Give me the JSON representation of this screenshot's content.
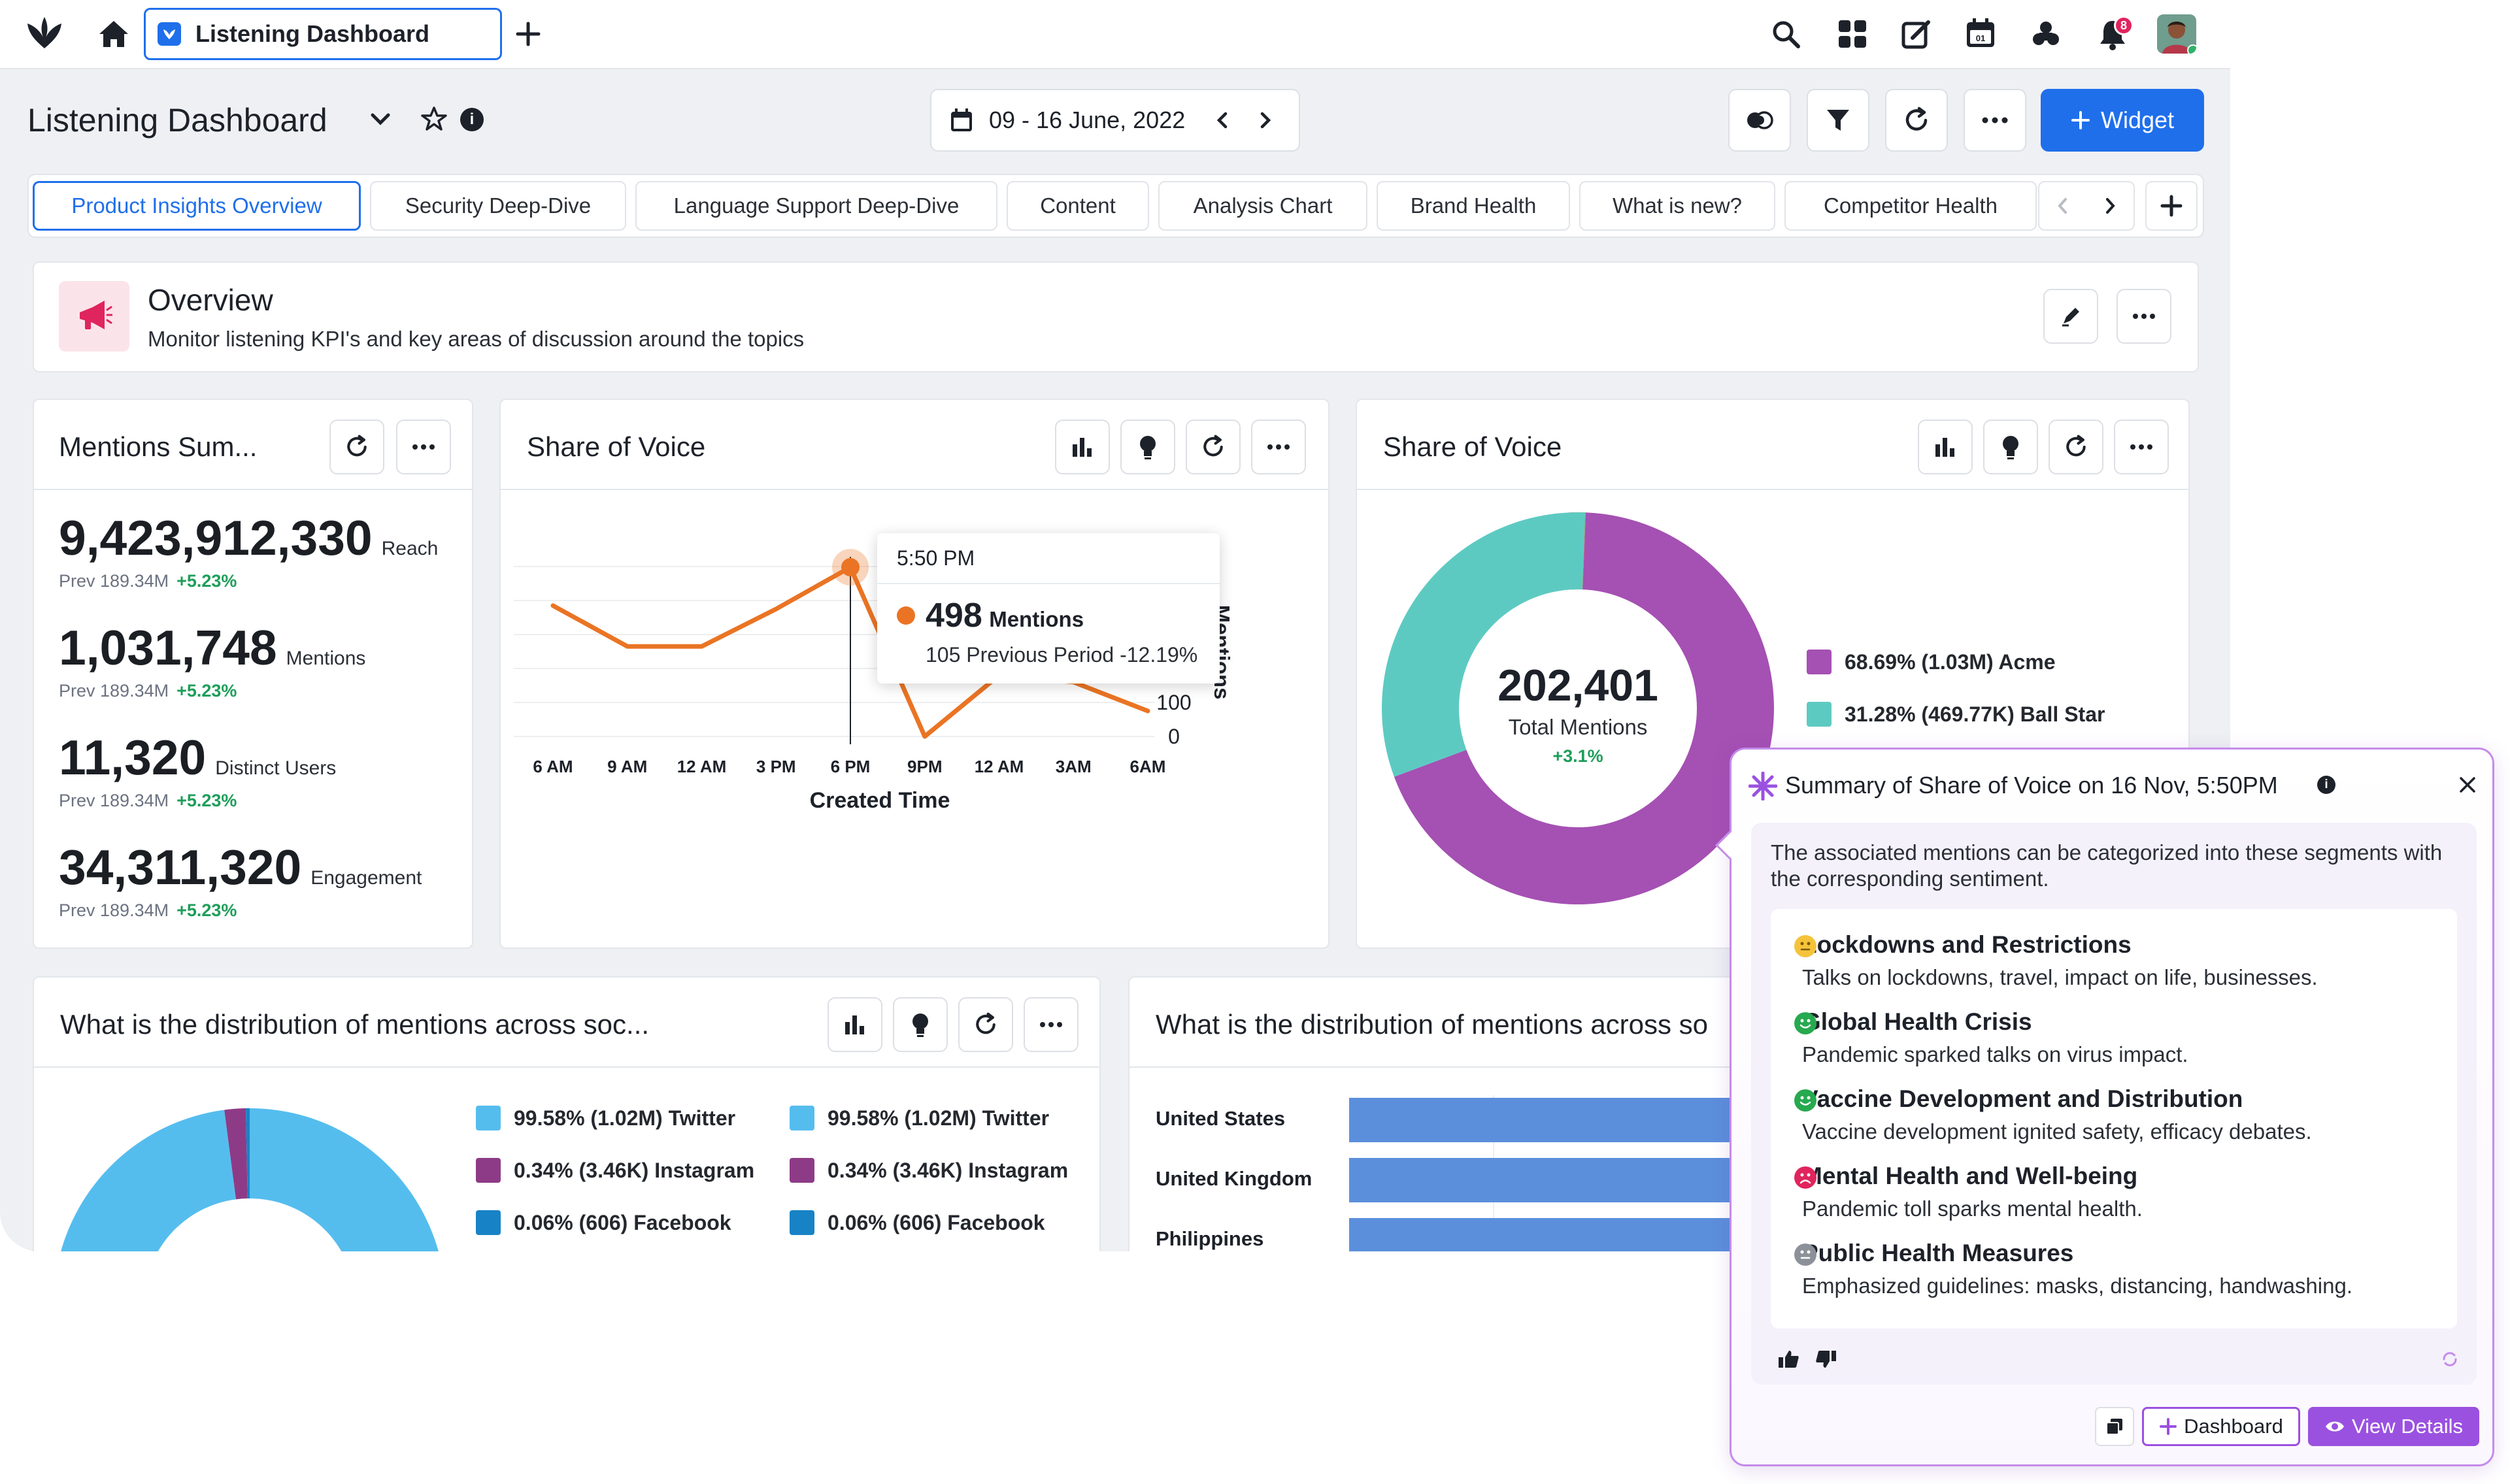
{
  "topbar": {
    "tab_title": "Listening Dashboard",
    "notification_count": "8"
  },
  "header": {
    "title": "Listening Dashboard",
    "date_range": "09 - 16 June, 2022",
    "widget_button": "Widget"
  },
  "tabs": [
    "Product Insights Overview",
    "Security Deep-Dive",
    "Language Support Deep-Dive",
    "Content",
    "Analysis Chart",
    "Brand Health",
    "What is new?",
    "Competitor Health"
  ],
  "overview": {
    "title": "Overview",
    "subtitle": "Monitor listening KPI's and key areas of discussion around the topics"
  },
  "mentions_summary": {
    "title": "Mentions Sum...",
    "kpis": [
      {
        "value": "9,423,912,330",
        "unit": "Reach",
        "prev": "Prev 189.34M",
        "change": "+5.23%"
      },
      {
        "value": "1,031,748",
        "unit": "Mentions",
        "prev": "Prev 189.34M",
        "change": "+5.23%"
      },
      {
        "value": "11,320",
        "unit": "Distinct Users",
        "prev": "Prev 189.34M",
        "change": "+5.23%"
      },
      {
        "value": "34,311,320",
        "unit": "Engagement",
        "prev": "Prev 189.34M",
        "change": "+5.23%"
      }
    ]
  },
  "share_of_voice_line": {
    "title": "Share of Voice",
    "tooltip": {
      "time": "5:50 PM",
      "value": "498",
      "label": "Mentions",
      "prev": "105 Previous Period -12.19%"
    }
  },
  "share_of_voice_donut": {
    "title": "Share of Voice",
    "total": "202,401",
    "total_label": "Total Mentions",
    "change": "+3.1%"
  },
  "distribution_left": {
    "title": "What is the distribution of mentions across soc..."
  },
  "distribution_right": {
    "title": "What is the distribution of mentions across so"
  },
  "summary_panel": {
    "title": "Summary of Share of Voice on 16 Nov, 5:50PM",
    "intro": "The associated mentions can be categorized into these segments with the corresponding sentiment.",
    "segments": [
      {
        "title": "Lockdowns and Restrictions",
        "desc": "Talks on lockdowns, travel, impact on life, businesses.",
        "sentiment": "neutral"
      },
      {
        "title": "Global Health Crisis",
        "desc": "Pandemic sparked talks on virus impact.",
        "sentiment": "positive"
      },
      {
        "title": "Vaccine Development and Distribution",
        "desc": "Vaccine development ignited safety, efficacy debates.",
        "sentiment": "positive"
      },
      {
        "title": "Mental Health and Well-being",
        "desc": "Pandemic toll sparks mental health.",
        "sentiment": "negative"
      },
      {
        "title": "Public Health Measures",
        "desc": "Emphasized guidelines: masks, distancing, handwashing.",
        "sentiment": "unknown"
      }
    ],
    "dashboard_button": "Dashboard",
    "view_details_button": "View Details"
  },
  "colors": {
    "accent": "#1f6feb",
    "line_orange": "#ea7424",
    "acme_purple": "#a550b3",
    "ballstar_teal": "#5dcac2",
    "twitter_blue": "#55bdee",
    "instagram_purple": "#8e3b87",
    "facebook_blue": "#1783c6",
    "bar_blue": "#5b8fdc",
    "ai_purple": "#9b51e0"
  },
  "chart_data": [
    {
      "type": "line",
      "title": "Share of Voice",
      "xlabel": "Created Time",
      "ylabel": "Mentions",
      "x_ticks": [
        "6 AM",
        "9 AM",
        "12 AM",
        "3 PM",
        "6 PM",
        "9PM",
        "12 AM",
        "3AM",
        "6AM"
      ],
      "y_ticks": [
        "0",
        "100",
        "200",
        "300",
        "400",
        "500"
      ],
      "ylim": [
        0,
        500
      ],
      "series": [
        {
          "name": "Mentions",
          "values": [
            385,
            265,
            265,
            375,
            498,
            0,
            180,
            160,
            75
          ]
        }
      ],
      "highlight_index": 4
    },
    {
      "type": "pie",
      "title": "Share of Voice",
      "slices": [
        {
          "label": "68.69% (1.03M) Acme",
          "value": 68.69,
          "color": "#a550b3"
        },
        {
          "label": "31.28% (469.77K) Ball Star",
          "value": 31.28,
          "color": "#5dcac2"
        },
        {
          "label": "",
          "value": 0.03,
          "color": "#ea7424"
        }
      ]
    },
    {
      "type": "pie",
      "title": "What is the distribution of mentions across soc...",
      "legend_columns": [
        [
          "99.58% (1.02M) Twitter",
          "0.34% (3.46K) Instagram",
          "0.06% (606) Facebook"
        ],
        [
          "99.58% (1.02M) Twitter",
          "0.34% (3.46K) Instagram",
          "0.06% (606) Facebook"
        ]
      ],
      "slices": [
        {
          "label": "99.58% (1.02M) Twitter",
          "value": 99.58,
          "color": "#55bdee"
        },
        {
          "label": "0.34% (3.46K) Instagram",
          "value": 0.34,
          "color": "#8e3b87"
        },
        {
          "label": "0.06% (606) Facebook",
          "value": 0.06,
          "color": "#1783c6"
        }
      ]
    },
    {
      "type": "bar",
      "title": "What is the distribution of mentions across so",
      "categories": [
        "United States",
        "United Kingdom",
        "Philippines"
      ]
    }
  ]
}
